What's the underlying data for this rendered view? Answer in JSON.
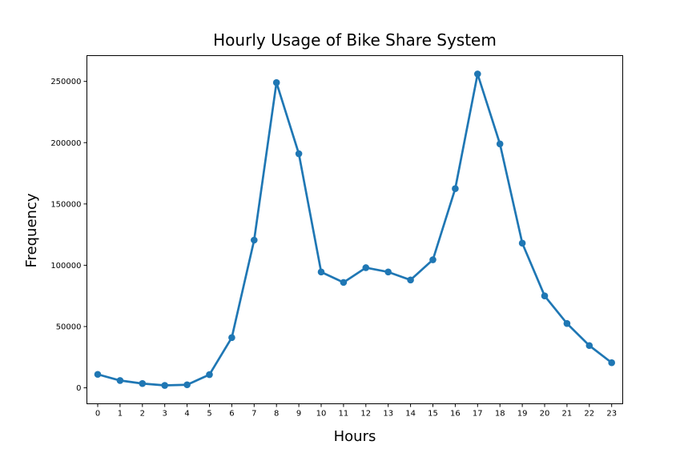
{
  "chart_data": {
    "type": "line",
    "title": "Hourly Usage of Bike Share System",
    "xlabel": "Hours",
    "ylabel": "Frequency",
    "x": [
      0,
      1,
      2,
      3,
      4,
      5,
      6,
      7,
      8,
      9,
      10,
      11,
      12,
      13,
      14,
      15,
      16,
      17,
      18,
      19,
      20,
      21,
      22,
      23
    ],
    "x_tick_labels": [
      "0",
      "1",
      "2",
      "3",
      "4",
      "5",
      "6",
      "7",
      "8",
      "9",
      "10",
      "11",
      "12",
      "13",
      "14",
      "15",
      "16",
      "17",
      "18",
      "19",
      "20",
      "21",
      "22",
      "23"
    ],
    "y_ticks": [
      0,
      50000,
      100000,
      150000,
      200000,
      250000
    ],
    "y_tick_labels": [
      "0",
      "50000",
      "100000",
      "150000",
      "200000",
      "250000"
    ],
    "ylim": [
      -13000,
      271000
    ],
    "grid": false,
    "series": [
      {
        "color": "#1f77b4",
        "values": [
          11000,
          6000,
          3500,
          2000,
          2500,
          10800,
          41000,
          120500,
          249000,
          191000,
          94500,
          86000,
          98000,
          94500,
          88000,
          104500,
          162500,
          256000,
          199000,
          118000,
          75000,
          52500,
          34500,
          20500
        ]
      }
    ]
  }
}
